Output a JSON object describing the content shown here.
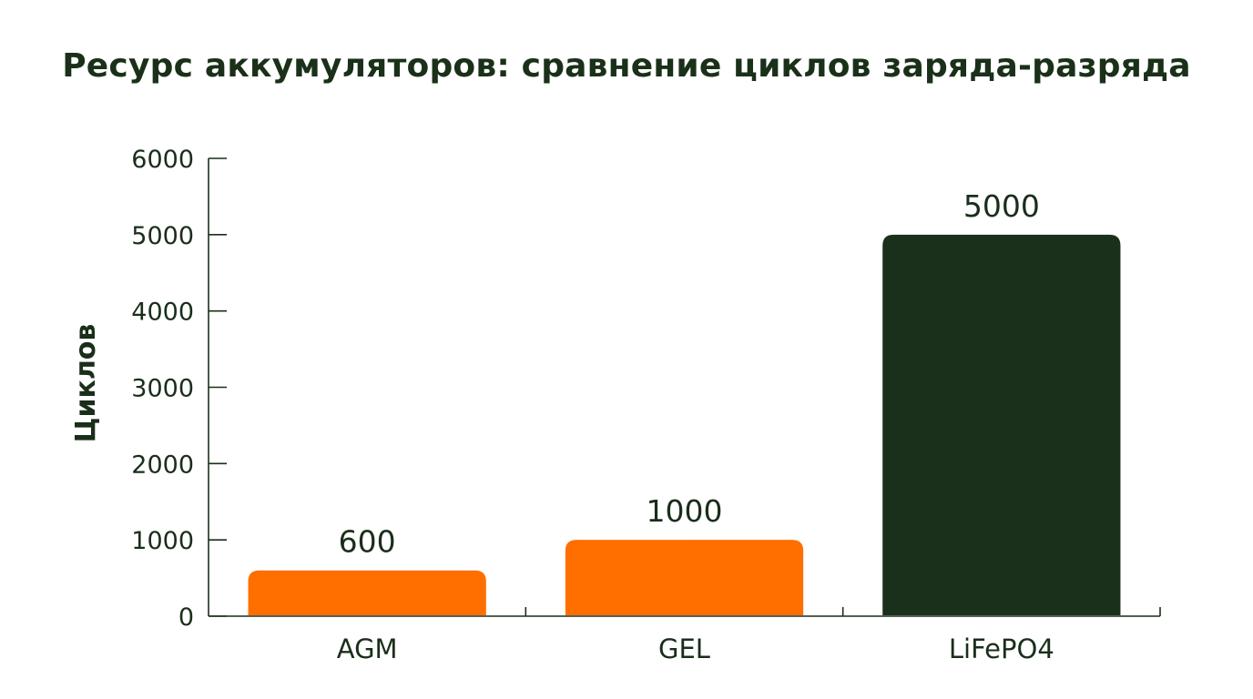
{
  "chart_data": {
    "type": "bar",
    "title": "Ресурс аккумуляторов: сравнение циклов заряда-разряда",
    "xlabel": "",
    "ylabel": "Циклов",
    "categories": [
      "AGM",
      "GEL",
      "LiFePO4"
    ],
    "values": [
      600,
      1000,
      5000
    ],
    "value_labels": [
      "600",
      "1000",
      "5000"
    ],
    "bar_colors": [
      "#ff6f00",
      "#ff6f00",
      "#1b301b"
    ],
    "ylim": [
      0,
      6000
    ],
    "yticks": [
      0,
      1000,
      2000,
      3000,
      4000,
      5000,
      6000
    ],
    "ytick_labels": [
      "0",
      "1000",
      "2000",
      "3000",
      "4000",
      "5000",
      "6000"
    ],
    "grid": false,
    "legend": "none",
    "axis_color": "#1a2e1a"
  }
}
